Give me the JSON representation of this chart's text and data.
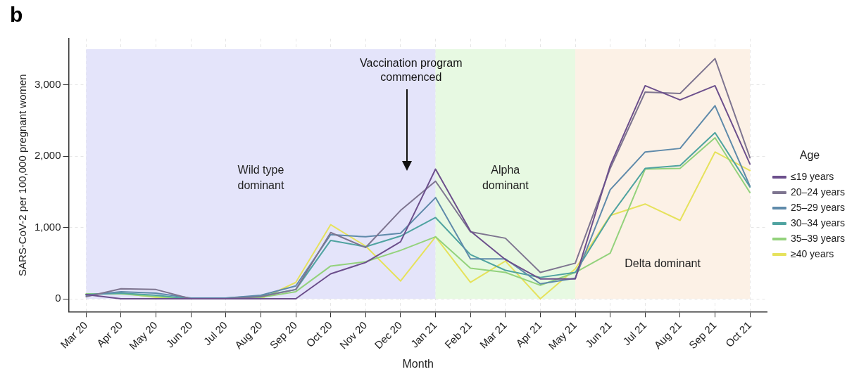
{
  "chart_data": {
    "type": "line",
    "title": "b",
    "xlabel": "Month",
    "ylabel": "SARS-CoV-2 per 100,000 pregnant women",
    "legend_title": "Age",
    "categories": [
      "Mar 20",
      "Apr 20",
      "May 20",
      "Jun 20",
      "Jul 20",
      "Aug 20",
      "Sep 20",
      "Oct 20",
      "Nov 20",
      "Dec 20",
      "Jan 21",
      "Feb 21",
      "Mar 21",
      "Apr 21",
      "May 21",
      "Jun 21",
      "Jul 21",
      "Aug 21",
      "Sep 21",
      "Oct 21"
    ],
    "ylim": [
      -180,
      3650
    ],
    "yticks": [
      {
        "value": 0,
        "label": "0"
      },
      {
        "value": 1000,
        "label": "1,000"
      },
      {
        "value": 2000,
        "label": "2,000"
      },
      {
        "value": 3000,
        "label": "3,000"
      }
    ],
    "grid": true,
    "legend": "right",
    "marker": "none",
    "line_style": "solid",
    "series": [
      {
        "name": "≤19 years",
        "color": "#6c4f8c",
        "values": [
          60,
          0,
          0,
          0,
          0,
          0,
          0,
          350,
          510,
          800,
          1820,
          950,
          550,
          280,
          280,
          1870,
          2990,
          2790,
          2990,
          1890
        ]
      },
      {
        "name": "20–24 years",
        "color": "#7e7590",
        "values": [
          30,
          140,
          130,
          0,
          0,
          30,
          130,
          930,
          720,
          1240,
          1650,
          940,
          850,
          370,
          500,
          1830,
          2900,
          2880,
          3370,
          1980
        ]
      },
      {
        "name": "25–29 years",
        "color": "#5f8aaa",
        "values": [
          50,
          100,
          80,
          10,
          10,
          50,
          180,
          900,
          870,
          920,
          1420,
          560,
          560,
          210,
          290,
          1530,
          2060,
          2110,
          2710,
          1580
        ]
      },
      {
        "name": "30–34 years",
        "color": "#4fa3a0",
        "values": [
          60,
          80,
          50,
          0,
          10,
          40,
          130,
          820,
          730,
          880,
          1140,
          620,
          400,
          300,
          370,
          1160,
          1830,
          1870,
          2330,
          1570
        ]
      },
      {
        "name": "35–39 years",
        "color": "#93d27c",
        "values": [
          70,
          70,
          30,
          0,
          0,
          20,
          100,
          460,
          520,
          680,
          870,
          430,
          370,
          190,
          370,
          640,
          1820,
          1830,
          2260,
          1490
        ]
      },
      {
        "name": "≥40 years",
        "color": "#e6e25c",
        "values": [
          60,
          80,
          20,
          0,
          0,
          0,
          230,
          1040,
          740,
          250,
          870,
          230,
          530,
          0,
          420,
          1170,
          1330,
          1100,
          2060,
          1800
        ]
      }
    ],
    "bands": [
      {
        "axis": "x",
        "from": "Mar 20",
        "to": "Jan 21",
        "label": "Wild type dominant",
        "color": "#e4e4fa"
      },
      {
        "axis": "x",
        "from": "Jan 21",
        "to": "May 21",
        "label": "Alpha dominant",
        "color": "#e7f9e2"
      },
      {
        "axis": "x",
        "from": "May 21",
        "to": "Oct 21",
        "label": "Delta dominant",
        "color": "#fcf1e6"
      }
    ],
    "annotations": [
      "Vaccination program commenced"
    ]
  }
}
